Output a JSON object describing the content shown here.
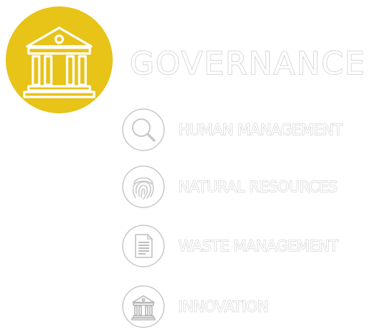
{
  "accent_color": "#e8c318",
  "outline_color": "#cfcfcf",
  "icon_stroke_color": "#c8c8c8",
  "hero": {
    "icon": "bank-building-icon",
    "title": "GOVERNANCE"
  },
  "items": [
    {
      "icon": "magnifier-icon",
      "label": "HUMAN MANAGEMENT"
    },
    {
      "icon": "fingerprint-icon",
      "label": "NATURAL RESOURCES"
    },
    {
      "icon": "document-icon",
      "label": "WASTE MANAGEMENT"
    },
    {
      "icon": "bank-building-icon",
      "label": "INNOVATION"
    }
  ]
}
